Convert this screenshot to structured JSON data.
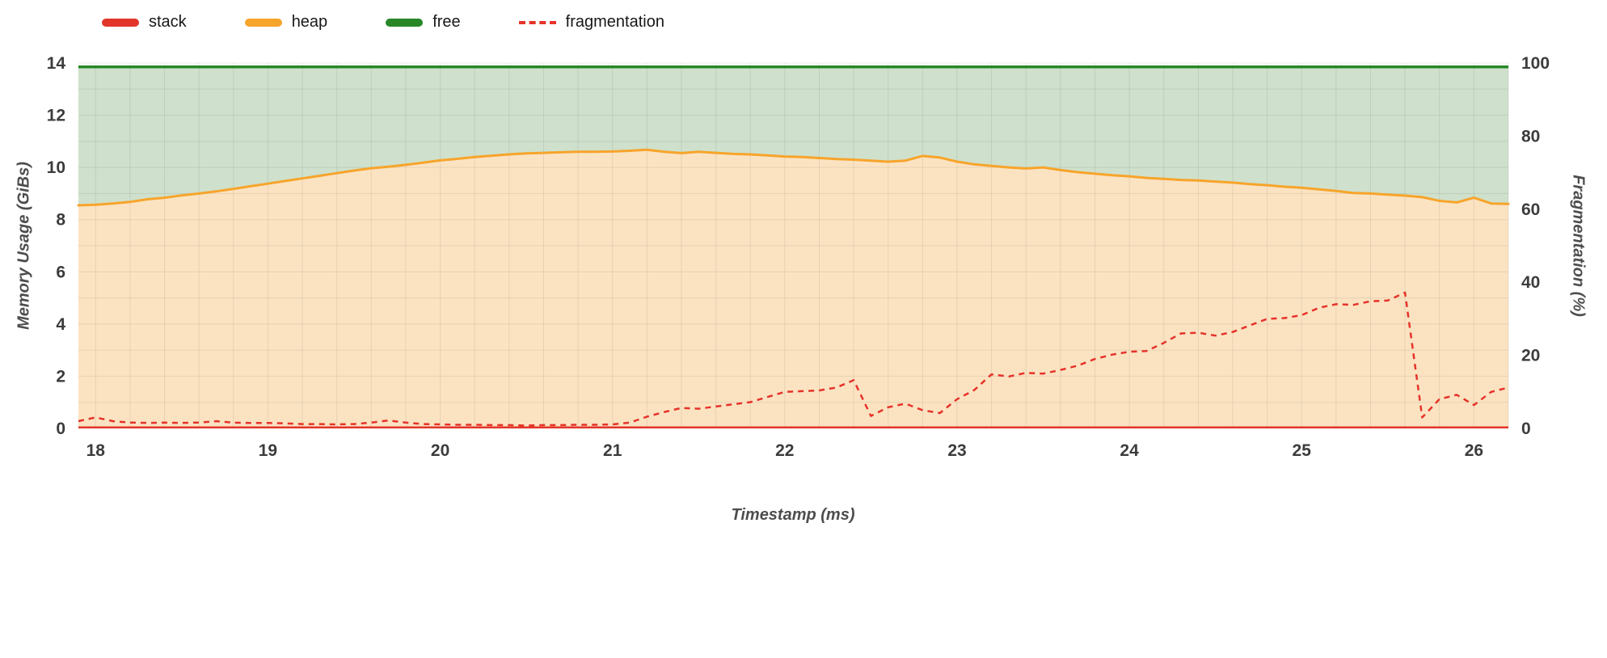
{
  "legend": {
    "items": [
      {
        "label": "stack",
        "color": "#e2362b",
        "dashed": false
      },
      {
        "label": "heap",
        "color": "#f7a42b",
        "dashed": false
      },
      {
        "label": "free",
        "color": "#278727",
        "dashed": false
      },
      {
        "label": "fragmentation",
        "color": "#e63329",
        "dashed": true
      }
    ]
  },
  "axes": {
    "left_title": "Memory Usage (GiBs)",
    "right_title": "Fragmentation (%)",
    "x_title": "Timestamp (ms)",
    "left_ticks": [
      0,
      2,
      4,
      6,
      8,
      10,
      12,
      14
    ],
    "right_ticks": [
      0,
      20,
      40,
      60,
      80,
      100
    ],
    "x_ticks": [
      18,
      19,
      20,
      21,
      22,
      23,
      24,
      25,
      26
    ]
  },
  "chart_data": {
    "type": "area",
    "title": "",
    "xlabel": "Timestamp (ms)",
    "ylabel_left": "Memory Usage (GiBs)",
    "ylabel_right": "Fragmentation (%)",
    "x_range": [
      17.9,
      26.2
    ],
    "y_left_range": [
      0,
      14
    ],
    "y_right_range": [
      0,
      100
    ],
    "x_start": 17.9,
    "x_step": 0.1,
    "total_memory_gib": 13.85,
    "stack_gib": 0.07,
    "grid": {
      "x_minor_step": 0.2,
      "y_minor_step": 1,
      "on": true
    },
    "legend_position": "top-left",
    "series": [
      {
        "name": "heap",
        "axis": "left",
        "values": [
          8.55,
          8.57,
          8.62,
          8.68,
          8.78,
          8.84,
          8.93,
          9.0,
          9.08,
          9.18,
          9.28,
          9.38,
          9.48,
          9.58,
          9.68,
          9.78,
          9.88,
          9.97,
          10.03,
          10.1,
          10.18,
          10.27,
          10.33,
          10.4,
          10.45,
          10.5,
          10.54,
          10.56,
          10.58,
          10.6,
          10.6,
          10.61,
          10.64,
          10.68,
          10.6,
          10.55,
          10.6,
          10.56,
          10.52,
          10.5,
          10.46,
          10.42,
          10.4,
          10.36,
          10.32,
          10.3,
          10.26,
          10.22,
          10.26,
          10.44,
          10.38,
          10.22,
          10.12,
          10.06,
          10.0,
          9.96,
          10.0,
          9.9,
          9.82,
          9.76,
          9.7,
          9.66,
          9.6,
          9.56,
          9.52,
          9.5,
          9.46,
          9.42,
          9.36,
          9.32,
          9.26,
          9.22,
          9.16,
          9.1,
          9.02,
          9.0,
          8.96,
          8.92,
          8.86,
          8.72,
          8.66,
          8.84,
          8.62,
          8.6
        ]
      },
      {
        "name": "fragmentation",
        "axis": "right",
        "values": [
          2.0,
          3.0,
          2.0,
          1.6,
          1.5,
          1.6,
          1.5,
          1.6,
          2.0,
          1.6,
          1.5,
          1.5,
          1.4,
          1.2,
          1.2,
          1.1,
          1.2,
          1.6,
          2.2,
          1.6,
          1.2,
          1.1,
          1.0,
          1.0,
          0.9,
          0.9,
          0.8,
          0.9,
          0.9,
          1.0,
          1.0,
          1.1,
          1.6,
          3.2,
          4.5,
          5.6,
          5.4,
          6.0,
          6.6,
          7.2,
          8.6,
          10.0,
          10.2,
          10.4,
          11.2,
          13.2,
          3.4,
          5.8,
          6.8,
          5.0,
          4.2,
          8.0,
          10.5,
          14.8,
          14.2,
          15.2,
          15.0,
          16.0,
          17.2,
          19.0,
          20.2,
          21.0,
          21.2,
          23.4,
          26.0,
          26.2,
          25.4,
          26.4,
          28.2,
          30.0,
          30.2,
          31.0,
          33.0,
          34.0,
          33.8,
          34.8,
          35.0,
          37.2,
          3.0,
          8.0,
          9.2,
          6.4,
          10.0,
          11.2
        ]
      }
    ],
    "colors": {
      "stack_line": "#e2362b",
      "stack_fill": "#ef9a93",
      "heap_line": "#f7a42b",
      "heap_fill": "#fbe3c2",
      "free_line": "#278727",
      "free_fill": "#cfe1cc",
      "fragmentation_line": "#e63329",
      "grid": "#e4e4e4"
    }
  }
}
